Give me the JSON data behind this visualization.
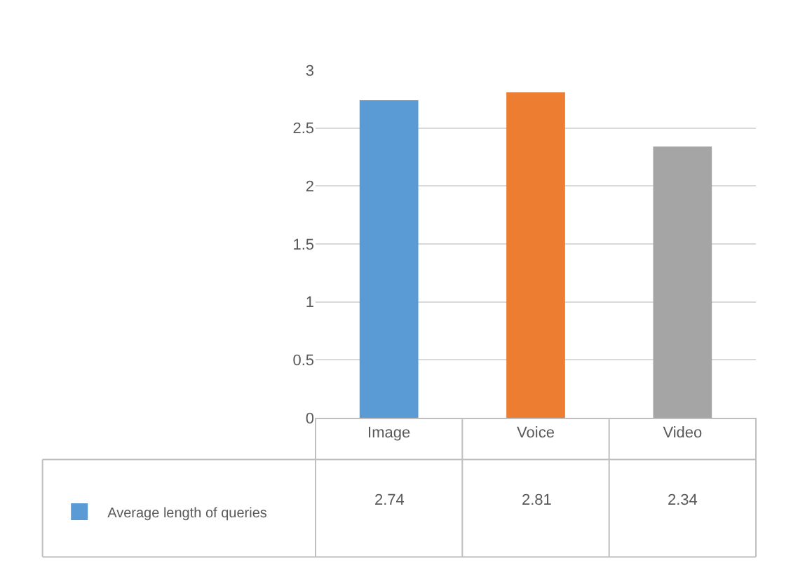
{
  "chart_data": {
    "type": "bar",
    "categories": [
      "Image",
      "Voice",
      "Video"
    ],
    "series": [
      {
        "name": "Average length of queries",
        "colors": [
          "#5b9bd5",
          "#ed7d31",
          "#a5a5a5"
        ],
        "values": [
          2.74,
          2.81,
          2.34
        ]
      }
    ],
    "ylim": [
      0,
      3
    ],
    "yticks": [
      0,
      0.5,
      1,
      1.5,
      2,
      2.5,
      3
    ],
    "grid": "y",
    "legend": "bottom left",
    "data_labels": true
  }
}
